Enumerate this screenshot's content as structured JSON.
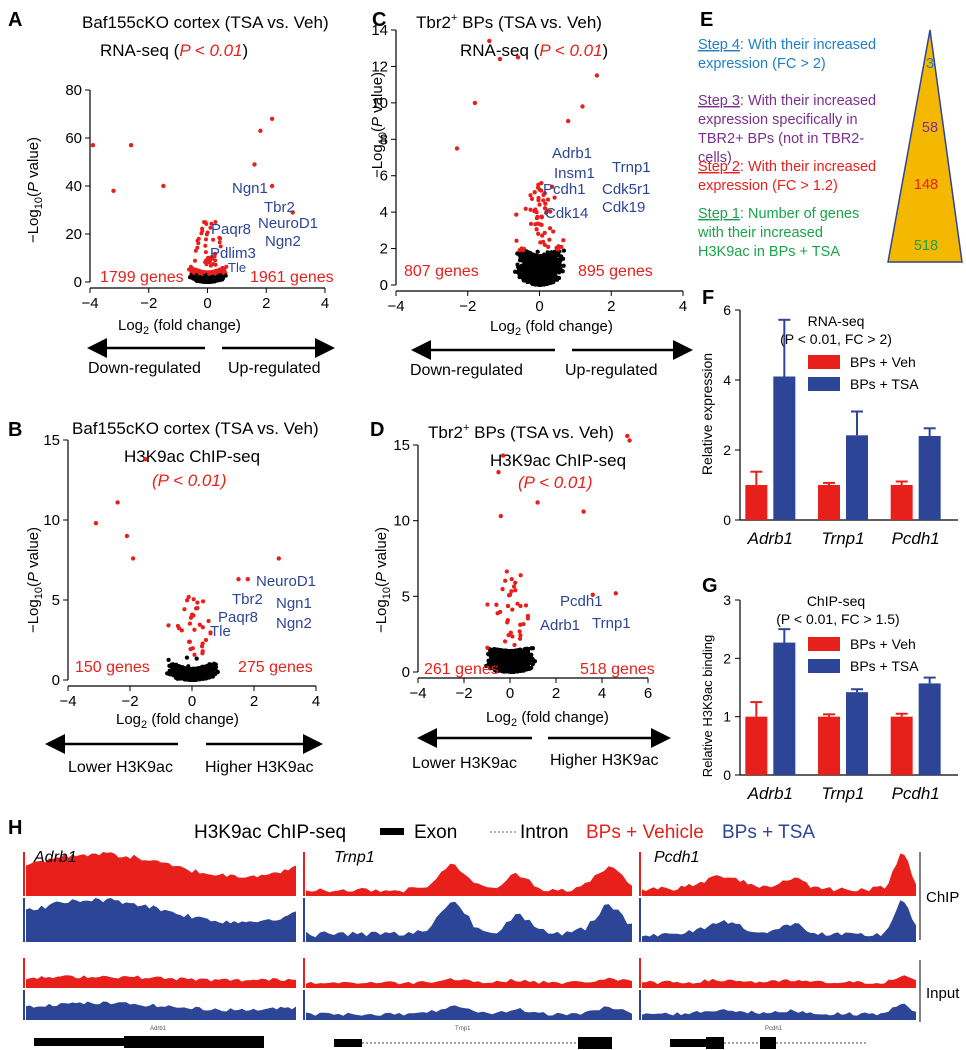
{
  "colors": {
    "red": "#e8201c",
    "blue": "#2d4596",
    "black": "#000000",
    "green": "#1aa34a",
    "purple": "#7b2f8e",
    "stepblue": "#1f7fc6",
    "orange": "#f5b800"
  },
  "panelA": {
    "letter": "A",
    "title": "Baf155cKO cortex (TSA vs. Veh)",
    "subtitle_main": "RNA-seq (",
    "subtitle_p": "P < 0.01",
    "subtitle_end": ")",
    "ylabel": "−Log10(P value)",
    "xlabel": "Log2 (fold change)",
    "left_count": "1799 genes",
    "right_count": "1961 genes",
    "genes": [
      "Ngn1",
      "Tbr2",
      "Paqr8",
      "NeuroD1",
      "Ngn2",
      "Pdlim3",
      "Tle"
    ],
    "arrow_left": "Down-regulated",
    "arrow_right": "Up-regulated",
    "chart_data": {
      "type": "scatter",
      "xlim": [
        -4,
        4
      ],
      "ylim": [
        0,
        80
      ],
      "xticks": [
        -4,
        -2,
        0,
        2,
        4
      ],
      "yticks": [
        0,
        20,
        40,
        60,
        80
      ]
    }
  },
  "panelB": {
    "letter": "B",
    "title": "Baf155cKO cortex (TSA vs. Veh)",
    "subtitle_main": "H3K9ac ChIP-seq",
    "subtitle_p": "(P < 0.01)",
    "ylabel": "−Log10(P value)",
    "xlabel": "Log2 (fold change)",
    "left_count": "150 genes",
    "right_count": "275 genes",
    "genes": [
      "NeuroD1",
      "Tbr2",
      "Ngn1",
      "Paqr8",
      "Ngn2",
      "Tle"
    ],
    "arrow_left": "Lower H3K9ac",
    "arrow_right": "Higher H3K9ac",
    "chart_data": {
      "type": "scatter",
      "xlim": [
        -4,
        4
      ],
      "ylim": [
        0,
        15
      ],
      "xticks": [
        -4,
        -2,
        0,
        2,
        4
      ],
      "yticks": [
        0,
        5,
        10,
        15
      ]
    }
  },
  "panelC": {
    "letter": "C",
    "title": "Tbr2",
    "title_sup": "+",
    "title_end": " BPs (TSA vs. Veh)",
    "subtitle_main": "RNA-seq (",
    "subtitle_p": "P < 0.01",
    "subtitle_end": ")",
    "ylabel": "−Log10(P value)",
    "xlabel": "Log2 (fold change)",
    "left_count": "807 genes",
    "right_count": "895 genes",
    "genes": [
      "Adrb1",
      "Insm1",
      "Trnp1",
      "Pcdh1",
      "Cdk5r1",
      "Cdk19",
      "Cdk14"
    ],
    "arrow_left": "Down-regulated",
    "arrow_right": "Up-regulated",
    "chart_data": {
      "type": "scatter",
      "xlim": [
        -4,
        4
      ],
      "ylim": [
        0,
        14
      ],
      "xticks": [
        -4,
        -2,
        0,
        2,
        4
      ],
      "yticks": [
        0,
        2,
        4,
        6,
        8,
        10,
        12,
        14
      ]
    }
  },
  "panelD": {
    "letter": "D",
    "title": "Tbr2",
    "title_sup": "+",
    "title_end": " BPs (TSA vs. Veh)",
    "subtitle_main": "H3K9ac ChIP-seq",
    "subtitle_p": "(P < 0.01)",
    "ylabel": "−Log10(P value)",
    "xlabel": "Log2 (fold change)",
    "left_count": "261 genes",
    "right_count": "518 genes",
    "genes": [
      "Pcdh1",
      "Adrb1",
      "Trnp1"
    ],
    "arrow_left": "Lower H3K9ac",
    "arrow_right": "Higher H3K9ac",
    "chart_data": {
      "type": "scatter",
      "xlim": [
        -4,
        6
      ],
      "ylim": [
        0,
        15
      ],
      "xticks": [
        -4,
        -2,
        0,
        2,
        4,
        6
      ],
      "yticks": [
        0,
        5,
        10,
        15
      ]
    }
  },
  "panelE": {
    "letter": "E",
    "steps": [
      {
        "label": "Step 4",
        "lines": [
          ": With their increased",
          "expression (FC > 2)"
        ],
        "count": "3"
      },
      {
        "label": "Step 3",
        "lines": [
          ": With their increased",
          "expression specifically in",
          "TBR2+ BPs (not in TBR2-",
          "cells)"
        ],
        "count": "58"
      },
      {
        "label": "Step 2",
        "lines": [
          ": With their increased",
          "expression (FC > 1.2)"
        ],
        "count": "148"
      },
      {
        "label": "Step 1",
        "lines": [
          ": Number of genes",
          "with their increased",
          "H3K9ac in BPs + TSA"
        ],
        "count": "518"
      }
    ]
  },
  "panelF": {
    "letter": "F",
    "title": "RNA-seq",
    "subtitle": "(P < 0.01, FC > 2)",
    "ylabel": "Relative expression",
    "legend": [
      "BPs + Veh",
      "BPs + TSA"
    ],
    "chart_data": {
      "type": "bar",
      "categories": [
        "Adrb1",
        "Trnp1",
        "Pcdh1"
      ],
      "ylim": [
        0,
        6
      ],
      "yticks": [
        0,
        2,
        4,
        6
      ],
      "series": [
        {
          "name": "BPs + Veh",
          "values": [
            1.0,
            1.0,
            1.0
          ],
          "err": [
            0.38,
            0.06,
            0.1
          ]
        },
        {
          "name": "BPs + TSA",
          "values": [
            4.1,
            2.42,
            2.4
          ],
          "err": [
            1.62,
            0.68,
            0.22
          ]
        }
      ]
    }
  },
  "panelG": {
    "letter": "G",
    "title": "ChIP-seq",
    "subtitle": "(P < 0.01, FC > 1.5)",
    "ylabel": "Relative H3K9ac binding",
    "legend": [
      "BPs + Veh",
      "BPs + TSA"
    ],
    "chart_data": {
      "type": "bar",
      "categories": [
        "Adrb1",
        "Trnp1",
        "Pcdh1"
      ],
      "ylim": [
        0,
        3
      ],
      "yticks": [
        0,
        1,
        2,
        3
      ],
      "series": [
        {
          "name": "BPs + Veh",
          "values": [
            1.0,
            1.0,
            1.0
          ],
          "err": [
            0.25,
            0.04,
            0.05
          ]
        },
        {
          "name": "BPs + TSA",
          "values": [
            2.27,
            1.42,
            1.57
          ],
          "err": [
            0.23,
            0.05,
            0.1
          ]
        }
      ]
    }
  },
  "panelH": {
    "letter": "H",
    "legend_title": "H3K9ac ChIP-seq",
    "legend_exon": "Exon",
    "legend_intron": "Intron",
    "legend_vehicle": "BPs + Vehicle",
    "legend_tsa": "BPs + TSA",
    "genes": [
      "Adrb1",
      "Trnp1",
      "Pcdh1"
    ],
    "gene_small": [
      "Adrb1",
      "Trnp1",
      "Pcdh1"
    ],
    "chip_label": "ChIP",
    "input_label": "Input"
  }
}
